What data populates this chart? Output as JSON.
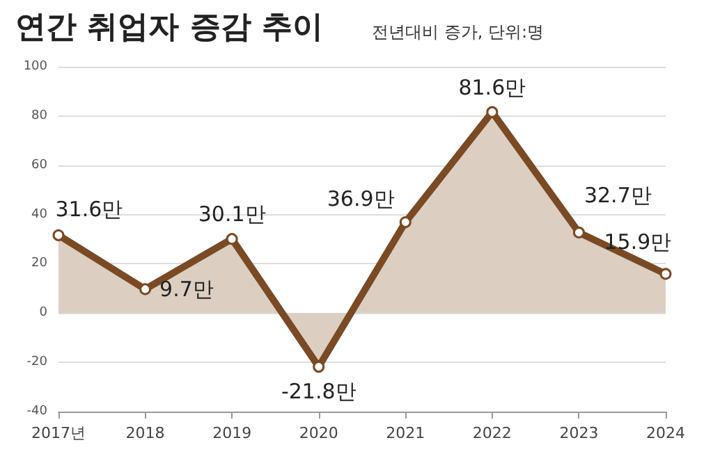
{
  "chart_data": {
    "type": "area",
    "title": "연간 취업자 증감 추이",
    "subtitle": "전년대비 증가, 단위:명",
    "categories": [
      "2017년",
      "2018",
      "2019",
      "2020",
      "2021",
      "2022",
      "2023",
      "2024"
    ],
    "series": [
      {
        "color": "#7a4a25",
        "values": [
          31.6,
          9.7,
          30.1,
          -21.8,
          36.9,
          81.6,
          32.7,
          15.9
        ],
        "value_labels": [
          "31.6만",
          "9.7만",
          "30.1만",
          "-21.8만",
          "36.9만",
          "81.6만",
          "32.7만",
          "15.9만"
        ]
      }
    ],
    "ylim": [
      -40,
      100
    ],
    "yticks": [
      -40,
      -20,
      0,
      20,
      40,
      60,
      80,
      100
    ],
    "grid": "y",
    "marker": "circle",
    "line_style": "solid"
  }
}
